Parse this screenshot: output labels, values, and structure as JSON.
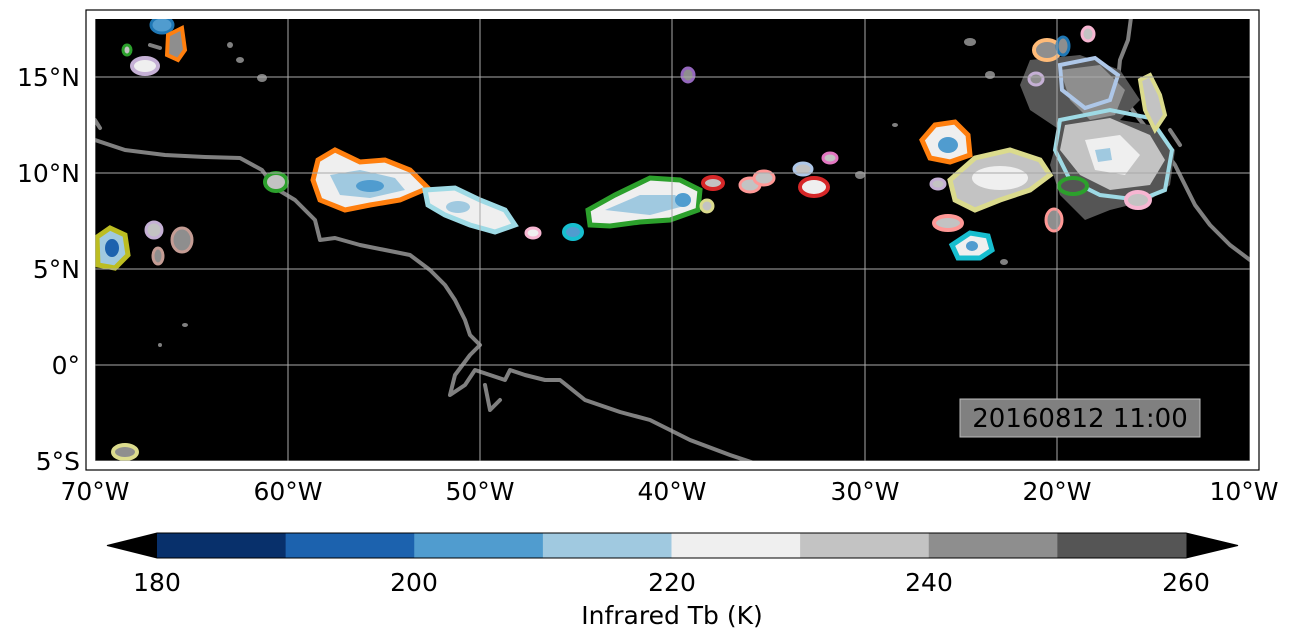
{
  "map": {
    "timestamp": "20160812 11:00",
    "lon_ticks": [
      "70°W",
      "60°W",
      "50°W",
      "40°W",
      "30°W",
      "20°W",
      "10°W"
    ],
    "lat_ticks": [
      "15°N",
      "10°N",
      "5°N",
      "0°",
      "5°S"
    ],
    "lon_range": [
      -70,
      -10
    ],
    "lat_range": [
      -5.5,
      18.5
    ],
    "background": "#000000",
    "coastline_color": "#808080",
    "grid_color": "#aaaaaa"
  },
  "colorbar": {
    "label": "Infrared Tb (K)",
    "ticks": [
      "180",
      "200",
      "220",
      "240",
      "260"
    ],
    "bins": [
      180,
      190,
      200,
      210,
      220,
      230,
      240,
      250,
      260
    ],
    "colors": [
      "#08306b",
      "#1c62ae",
      "#509ccf",
      "#a0c9e0",
      "#efefef",
      "#c3c3c3",
      "#8e8e8e",
      "#555555"
    ],
    "extend": "both"
  },
  "cloud_outline_colors": [
    "#ff7f0e",
    "#1f77b4",
    "#2ca02c",
    "#d62728",
    "#9467bd",
    "#8c564b",
    "#e377c2",
    "#bcbd22",
    "#17becf",
    "#aec7e8",
    "#ffbb78",
    "#ff9896",
    "#c5b0d5",
    "#c49c94",
    "#f7b6d2",
    "#dbdb8d",
    "#9edae5"
  ]
}
